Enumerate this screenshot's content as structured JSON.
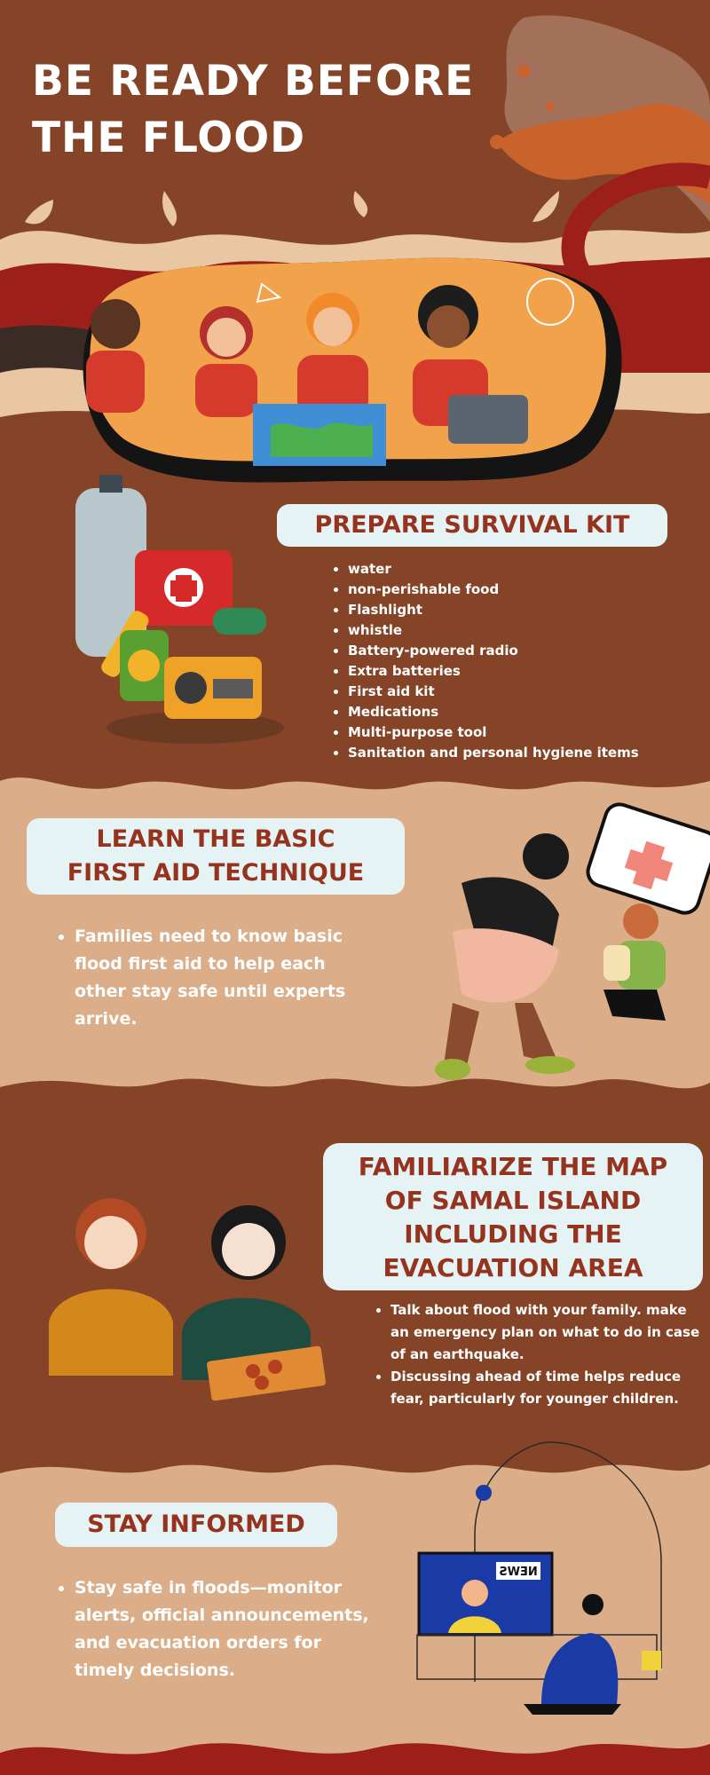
{
  "header": {
    "title_line1": "BE READY BEFORE",
    "title_line2": "THE FLOOD"
  },
  "survival_kit": {
    "heading": "PREPARE SURVIVAL KIT",
    "items": [
      "water",
      "non-perishable food",
      "Flashlight",
      "whistle",
      "Battery-powered radio",
      "Extra batteries",
      "First aid kit",
      "Medications",
      "Multi-purpose tool",
      "Sanitation and personal hygiene items"
    ]
  },
  "first_aid": {
    "heading_line1": "LEARN THE BASIC",
    "heading_line2": "FIRST AID TECHNIQUE",
    "bullet": "Families need to know basic flood first aid to help each other stay safe until experts arrive."
  },
  "map_section": {
    "heading_line1": "FAMILIARIZE THE MAP",
    "heading_line2": "OF SAMAL ISLAND",
    "heading_line3": "INCLUDING THE",
    "heading_line4": "EVACUATION AREA",
    "bullets": [
      "Talk about flood with your family. make an emergency plan on what to do in case of an earthquake.",
      "Discussing ahead of time helps reduce fear, particularly for younger children."
    ]
  },
  "stay_informed": {
    "heading": "STAY INFORMED",
    "bullet": "Stay safe in floods—monitor alerts, official announcements, and evacuation orders for timely decisions.",
    "tv_sign": "NEWS"
  },
  "colors": {
    "dark_brown": "#854427",
    "tan": "#dbae89",
    "cream": "#e9c7a3",
    "red": "#9c1f1a",
    "pill_bg": "#e6f3f5",
    "heading_red": "#96331f"
  }
}
